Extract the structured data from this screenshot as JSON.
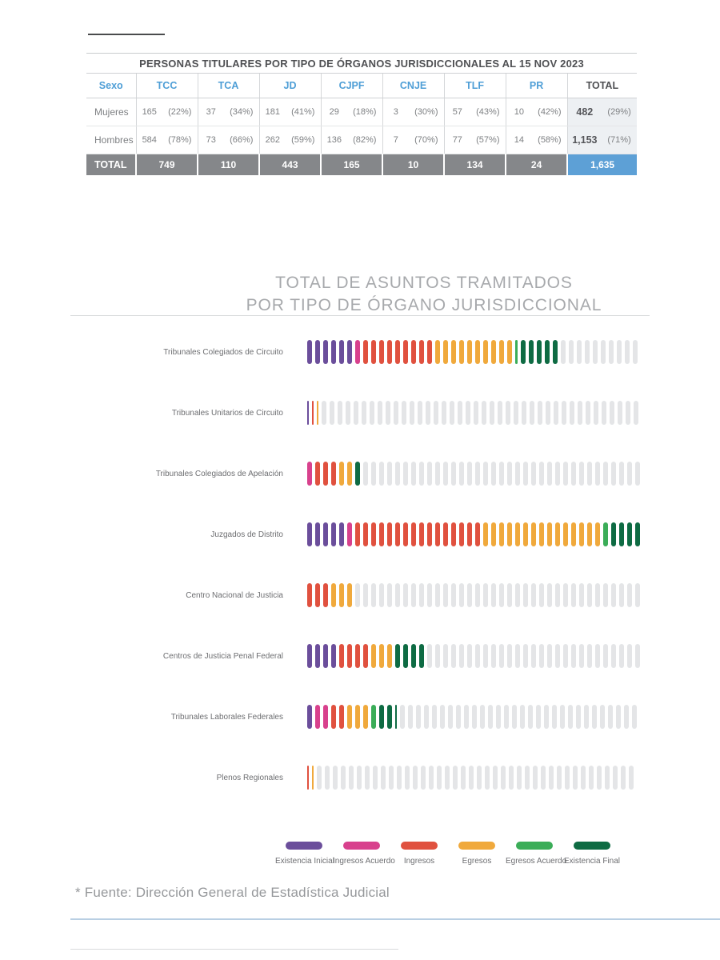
{
  "colors": {
    "header_blue": "#4E9ED6",
    "table_total_row_bg": "#85878A",
    "grand_total_bg": "#5DA0D6",
    "total_col_bg": "#EDF0F3",
    "empty_pill": "#E4E5E7"
  },
  "table": {
    "title": "PERSONAS TITULARES POR TIPO DE ÓRGANOS JURISDICCIONALES AL 15 NOV 2023",
    "sex_header": "Sexo",
    "total_header": "TOTAL",
    "org_columns": [
      "TCC",
      "TCA",
      "JD",
      "CJPF",
      "CNJE",
      "TLF",
      "PR"
    ],
    "rows": [
      {
        "label": "Mujeres",
        "cells": [
          [
            "165",
            "(22%)"
          ],
          [
            "37",
            "(34%)"
          ],
          [
            "181",
            "(41%)"
          ],
          [
            "29",
            "(18%)"
          ],
          [
            "3",
            "(30%)"
          ],
          [
            "57",
            "(43%)"
          ],
          [
            "10",
            "(42%)"
          ]
        ],
        "total": [
          "482",
          "(29%)"
        ]
      },
      {
        "label": "Hombres",
        "cells": [
          [
            "584",
            "(78%)"
          ],
          [
            "73",
            "(66%)"
          ],
          [
            "262",
            "(59%)"
          ],
          [
            "136",
            "(82%)"
          ],
          [
            "7",
            "(70%)"
          ],
          [
            "77",
            "(57%)"
          ],
          [
            "14",
            "(58%)"
          ]
        ],
        "total": [
          "1,153",
          "(71%)"
        ]
      }
    ],
    "total_row": {
      "label": "TOTAL",
      "values": [
        "749",
        "110",
        "443",
        "165",
        "10",
        "134",
        "24"
      ],
      "grand_total": "1,635"
    }
  },
  "chart": {
    "title_line1": "TOTAL DE ASUNTOS TRAMITADOS",
    "title_line2": "POR TIPO DE ÓRGANO JURISDICCIONAL"
  },
  "chart_data": {
    "type": "pictogram",
    "title": "TOTAL DE ASUNTOS TRAMITADOS POR TIPO DE ÓRGANO JURISDICCIONAL",
    "unit": "pill icons as drawn in figure; fractional values are thin sliver icons",
    "row_total_slots": 42,
    "legend": [
      {
        "name": "Existencia Inicial",
        "color": "#6B4E9B"
      },
      {
        "name": "Ingresos Acuerdo",
        "color": "#D8418D"
      },
      {
        "name": "Ingresos",
        "color": "#E0513F"
      },
      {
        "name": "Egresos",
        "color": "#F0A93C"
      },
      {
        "name": "Egresos Acuerdo",
        "color": "#3BAD58"
      },
      {
        "name": "Existencia Final",
        "color": "#0E6B43"
      }
    ],
    "rows": [
      {
        "label": "Tribunales Colegiados de Circuito",
        "segments": [
          [
            "Existencia Inicial",
            6
          ],
          [
            "Ingresos Acuerdo",
            1
          ],
          [
            "Ingresos",
            9
          ],
          [
            "Egresos",
            10
          ],
          [
            "Egresos Acuerdo",
            0.5
          ],
          [
            "Existencia Final",
            5
          ]
        ],
        "empty": 10
      },
      {
        "label": "Tribunales Unitarios de Circuito",
        "segments": [
          [
            "Existencia Inicial",
            0.35
          ],
          [
            "Ingresos",
            0.35
          ],
          [
            "Egresos",
            0.4
          ]
        ],
        "empty": 40
      },
      {
        "label": "Tribunales Colegiados de Apelación",
        "segments": [
          [
            "Ingresos Acuerdo",
            1
          ],
          [
            "Ingresos",
            3
          ],
          [
            "Egresos",
            2
          ],
          [
            "Existencia Final",
            1
          ]
        ],
        "empty": 35
      },
      {
        "label": "Juzgados de Distrito",
        "segments": [
          [
            "Existencia Inicial",
            5
          ],
          [
            "Ingresos Acuerdo",
            1
          ],
          [
            "Ingresos",
            16
          ],
          [
            "Egresos",
            15
          ],
          [
            "Egresos Acuerdo",
            1
          ],
          [
            "Existencia Final",
            4
          ]
        ],
        "empty": 0
      },
      {
        "label": "Centro Nacional de Justicia",
        "segments": [
          [
            "Ingresos",
            3
          ],
          [
            "Egresos",
            3
          ]
        ],
        "empty": 36
      },
      {
        "label": "Centros de Justicia Penal Federal",
        "segments": [
          [
            "Existencia Inicial",
            4
          ],
          [
            "Ingresos",
            4
          ],
          [
            "Egresos",
            3
          ],
          [
            "Existencia Final",
            4
          ]
        ],
        "empty": 27
      },
      {
        "label": "Tribunales Laborales Federales",
        "segments": [
          [
            "Existencia Inicial",
            1
          ],
          [
            "Ingresos Acuerdo",
            2
          ],
          [
            "Ingresos",
            2
          ],
          [
            "Egresos",
            3
          ],
          [
            "Egresos Acuerdo",
            1
          ],
          [
            "Existencia Final",
            2.3
          ]
        ],
        "empty": 30
      },
      {
        "label": "Plenos Regionales",
        "segments": [
          [
            "Ingresos",
            0.35
          ],
          [
            "Egresos",
            0.4
          ]
        ],
        "empty": 40
      }
    ]
  },
  "footer": {
    "source": "* Fuente: Dirección General de Estadística Judicial"
  }
}
